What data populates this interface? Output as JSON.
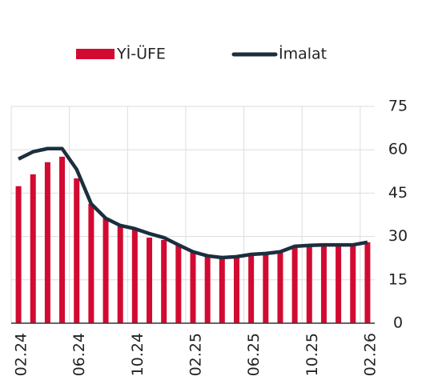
{
  "chart_data": {
    "type": "bar_line",
    "categories": [
      "02.24",
      null,
      null,
      null,
      "06.24",
      null,
      null,
      null,
      "10.24",
      null,
      null,
      null,
      "02.25",
      null,
      null,
      null,
      "06.25",
      null,
      null,
      null,
      "10.25",
      null,
      null,
      null,
      "02.26"
    ],
    "series": [
      {
        "name": "Yİ-ÜFE",
        "type": "bar",
        "color": "#d20a32",
        "values": [
          47.4,
          51.5,
          55.7,
          57.6,
          50.1,
          41.3,
          36.3,
          33.5,
          32.4,
          29.6,
          28.8,
          27.4,
          24.7,
          23,
          22.4,
          22.7,
          23.3,
          23.8,
          24.4,
          26,
          26.6,
          26.6,
          26.9,
          26.9,
          28
        ]
      },
      {
        "name": "İmalat",
        "type": "line",
        "color": "#1c2f3e",
        "values": [
          56.8,
          59.3,
          60.4,
          60.4,
          53.2,
          41.3,
          36.3,
          33.8,
          32.7,
          31,
          29.6,
          27.1,
          24.7,
          23.3,
          22.7,
          23,
          23.8,
          24.1,
          24.7,
          26.6,
          26.9,
          27.1,
          27.1,
          27.1,
          28
        ]
      }
    ],
    "ylim": [
      0,
      75
    ],
    "yticks": [
      0,
      15,
      30,
      45,
      60,
      75
    ],
    "grid": true
  }
}
